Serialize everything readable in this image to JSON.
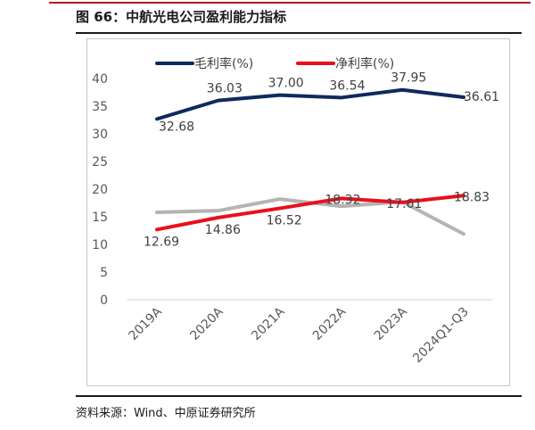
{
  "figure": {
    "title": "图 66：中航光电公司盈利能力指标",
    "source": "资料来源：Wind、中原证券研究所"
  },
  "colors": {
    "accent_rule": "#b01e23",
    "gross_margin": "#0e2a5e",
    "net_margin": "#e8101a",
    "extra_series": "#b4b4b4"
  },
  "chart_data": {
    "type": "line",
    "title": "",
    "xlabel": "",
    "ylabel": "",
    "categories": [
      "2019A",
      "2020A",
      "2021A",
      "2022A",
      "2023A",
      "2024Q1-Q3"
    ],
    "ylim": [
      0,
      40
    ],
    "yticks": [
      "0",
      "5",
      "10",
      "15",
      "20",
      "25",
      "30",
      "35",
      "40"
    ],
    "grid": false,
    "legend_position": "top",
    "series": [
      {
        "name": "毛利率(%)",
        "values": [
          32.68,
          36.03,
          37.0,
          36.54,
          37.95,
          36.61
        ],
        "labels": [
          "32.68",
          "36.03",
          "37.00",
          "36.54",
          "37.95",
          "36.61"
        ],
        "legend": true
      },
      {
        "name": "净利率(%)",
        "values": [
          12.69,
          14.86,
          16.52,
          18.32,
          17.61,
          18.83
        ],
        "labels": [
          "12.69",
          "14.86",
          "16.52",
          "18.32",
          "17.61",
          "18.83"
        ],
        "legend": true
      },
      {
        "values": [
          15.8,
          16.1,
          18.2,
          16.9,
          17.7,
          11.9
        ],
        "labels": [],
        "legend": false
      }
    ]
  }
}
